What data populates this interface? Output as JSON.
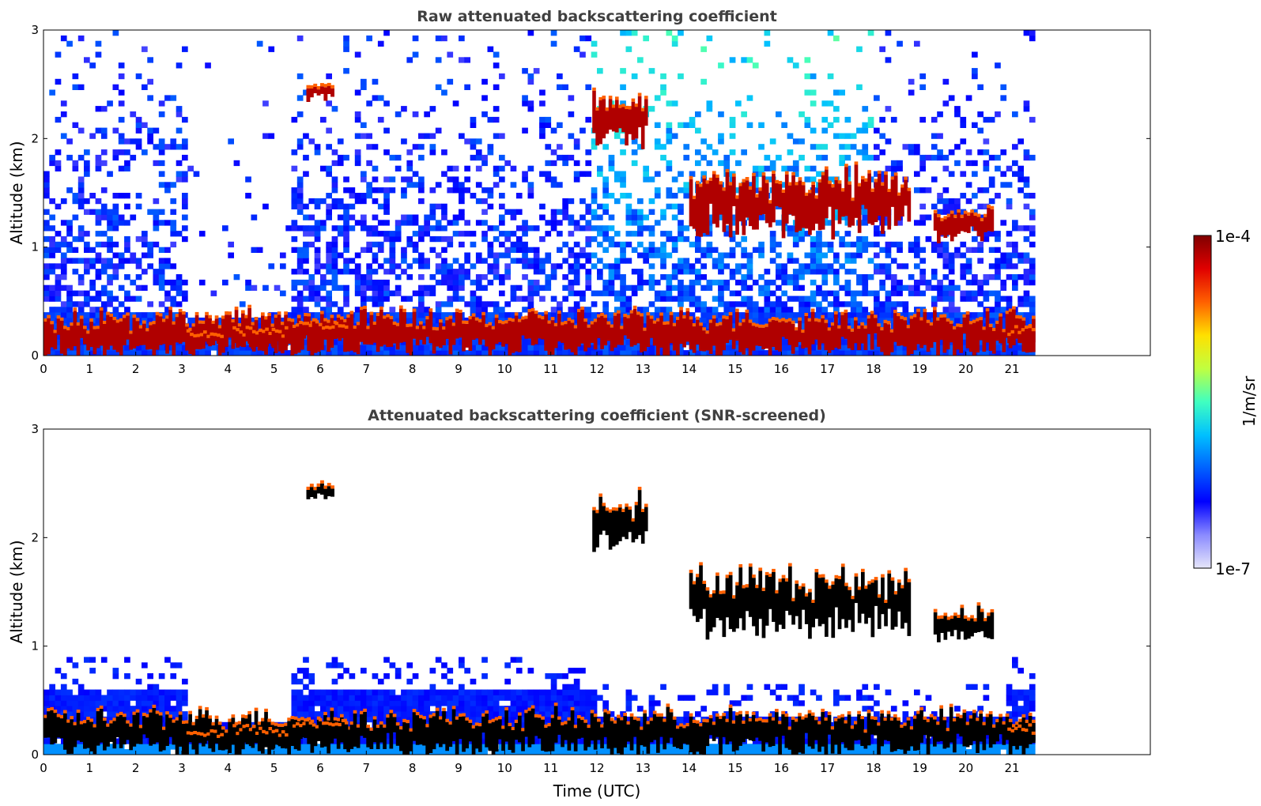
{
  "chart_data": [
    {
      "type": "heatmap",
      "title": "Raw attenuated backscattering coefficient",
      "xlabel": "",
      "ylabel": "Altitude (km)",
      "xlim": [
        0,
        24
      ],
      "ylim": [
        0,
        3
      ],
      "x_ticks": [
        "0",
        "1",
        "2",
        "3",
        "4",
        "5",
        "6",
        "7",
        "8",
        "9",
        "10",
        "11",
        "12",
        "13",
        "14",
        "15",
        "16",
        "17",
        "18",
        "19",
        "20",
        "21"
      ],
      "y_ticks": [
        "0",
        "1",
        "2",
        "3"
      ],
      "data_end_time": 21.5,
      "grid": false,
      "features": [
        {
          "feature": "near-surface aerosol layer",
          "time": [
            0,
            21.5
          ],
          "altitude": [
            0,
            0.4
          ]
        },
        {
          "feature": "fog / low cloud",
          "time": [
            3.1,
            3.9
          ],
          "altitude": [
            0.1,
            0.2
          ]
        },
        {
          "feature": "fog / low cloud",
          "time": [
            4.1,
            5.3
          ],
          "altitude": [
            0.05,
            0.25
          ]
        },
        {
          "feature": "low cloud",
          "time": [
            5.4,
            6.6
          ],
          "altitude": [
            0.15,
            0.3
          ]
        },
        {
          "feature": "cloud",
          "time": [
            5.7,
            6.3
          ],
          "altitude": [
            2.35,
            2.5
          ]
        },
        {
          "feature": "cloud",
          "time": [
            11.9,
            13.1
          ],
          "altitude": [
            1.9,
            2.4
          ]
        },
        {
          "feature": "cloud",
          "time": [
            14.0,
            18.8
          ],
          "altitude": [
            1.1,
            1.7
          ]
        },
        {
          "feature": "cloud",
          "time": [
            19.3,
            20.6
          ],
          "altitude": [
            1.05,
            1.35
          ]
        },
        {
          "feature": "low cloud",
          "time": [
            20.9,
            21.5
          ],
          "altitude": [
            0.1,
            0.25
          ]
        }
      ]
    },
    {
      "type": "heatmap",
      "title": "Attenuated backscattering coefficient (SNR-screened)",
      "xlabel": "Time (UTC)",
      "ylabel": "Altitude (km)",
      "xlim": [
        0,
        24
      ],
      "ylim": [
        0,
        3
      ],
      "x_ticks": [
        "0",
        "1",
        "2",
        "3",
        "4",
        "5",
        "6",
        "7",
        "8",
        "9",
        "10",
        "11",
        "12",
        "13",
        "14",
        "15",
        "16",
        "17",
        "18",
        "19",
        "20",
        "21"
      ],
      "y_ticks": [
        "0",
        "1",
        "2",
        "3"
      ],
      "data_end_time": 21.5,
      "grid": false
    }
  ],
  "colorbar": {
    "label": "1/m/sr",
    "max_label": "1e-4",
    "min_label": "1e-7",
    "scale": "log",
    "colormap": [
      "#e6e6fa",
      "#8a8aff",
      "#0000ff",
      "#0060ff",
      "#00c0ff",
      "#40ffc0",
      "#c0ff40",
      "#ffe000",
      "#ff6000",
      "#e00000",
      "#800000"
    ]
  }
}
